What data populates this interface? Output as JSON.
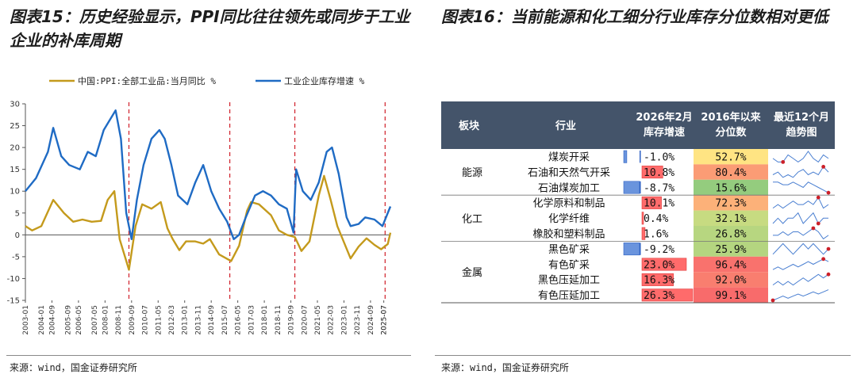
{
  "left": {
    "title": "图表15：历史经验显示，PPI同比往往领先或同步于工业企业的补库周期",
    "source": "来源：wind，国金证券研究所"
  },
  "right": {
    "title": "图表16：当前能源和化工细分行业库存分位数相对更低",
    "source": "来源：wind，国金证券研究所"
  },
  "chart_data": [
    {
      "type": "line",
      "title": "",
      "ylim": [
        -15,
        30
      ],
      "yticks": [
        -15,
        -10,
        -5,
        0,
        5,
        10,
        15,
        20,
        25,
        30
      ],
      "x_range": [
        "2003-01",
        "2025-12"
      ],
      "xticks": [
        "2003-01",
        "2004-09",
        "2006-05",
        "2008-01",
        "2009-09",
        "2011-05",
        "2013-01",
        "2014-09",
        "2016-05",
        "2018-01",
        "2019-09",
        "2021-05",
        "2023-01",
        "2024-09",
        "2025-07"
      ],
      "xticks_upper": [
        "2004-01",
        "2005-09",
        "2007-05",
        "2008-11",
        "2010-07",
        "2012-03",
        "2013-11",
        "2015-07",
        "2017-03",
        "2018-11",
        "2020-07",
        "2022-03",
        "2023-11",
        "2025-07"
      ],
      "vlines": [
        "2009-07",
        "2015-11",
        "2019-12",
        "2025-08"
      ],
      "series": [
        {
          "name": "中国:PPI:全部工业品:当月同比 %",
          "color": "#c49a1c",
          "points": [
            [
              "2003-01",
              2
            ],
            [
              "2003-06",
              1
            ],
            [
              "2004-01",
              2
            ],
            [
              "2004-10",
              8
            ],
            [
              "2005-06",
              5
            ],
            [
              "2006-01",
              3
            ],
            [
              "2006-08",
              3.5
            ],
            [
              "2007-03",
              3
            ],
            [
              "2007-10",
              3.2
            ],
            [
              "2008-03",
              8
            ],
            [
              "2008-08",
              10
            ],
            [
              "2008-12",
              -1
            ],
            [
              "2009-07",
              -8
            ],
            [
              "2009-12",
              2
            ],
            [
              "2010-05",
              7
            ],
            [
              "2010-12",
              6
            ],
            [
              "2011-07",
              7.5
            ],
            [
              "2011-12",
              1.5
            ],
            [
              "2012-04",
              -1
            ],
            [
              "2012-09",
              -3.5
            ],
            [
              "2013-02",
              -1.5
            ],
            [
              "2013-09",
              -1.5
            ],
            [
              "2014-03",
              -2
            ],
            [
              "2014-08",
              -1
            ],
            [
              "2015-03",
              -4.5
            ],
            [
              "2015-12",
              -6
            ],
            [
              "2016-06",
              -2.5
            ],
            [
              "2016-12",
              5.5
            ],
            [
              "2017-03",
              7.5
            ],
            [
              "2017-09",
              7
            ],
            [
              "2018-06",
              4.5
            ],
            [
              "2018-12",
              1
            ],
            [
              "2019-06",
              0
            ],
            [
              "2019-12",
              -0.5
            ],
            [
              "2020-05",
              -3.7
            ],
            [
              "2020-11",
              -1.5
            ],
            [
              "2021-06",
              9
            ],
            [
              "2021-10",
              13.5
            ],
            [
              "2022-03",
              8
            ],
            [
              "2022-08",
              2
            ],
            [
              "2023-06",
              -5.4
            ],
            [
              "2023-12",
              -2.7
            ],
            [
              "2024-06",
              -0.8
            ],
            [
              "2024-12",
              -2.3
            ],
            [
              "2025-05",
              -3.3
            ],
            [
              "2025-10",
              -2.1
            ],
            [
              "2025-12",
              0.5
            ]
          ]
        },
        {
          "name": "工业企业库存增速 %",
          "color": "#1f6bc4",
          "points": [
            [
              "2003-01",
              10
            ],
            [
              "2003-09",
              13
            ],
            [
              "2004-06",
              19
            ],
            [
              "2004-10",
              24.5
            ],
            [
              "2005-04",
              18
            ],
            [
              "2005-10",
              16
            ],
            [
              "2006-06",
              15
            ],
            [
              "2006-12",
              19
            ],
            [
              "2007-06",
              18
            ],
            [
              "2007-12",
              24
            ],
            [
              "2008-04",
              26
            ],
            [
              "2008-09",
              28.5
            ],
            [
              "2009-01",
              22
            ],
            [
              "2009-05",
              5
            ],
            [
              "2009-09",
              -1
            ],
            [
              "2010-01",
              8
            ],
            [
              "2010-06",
              16
            ],
            [
              "2010-12",
              22
            ],
            [
              "2011-06",
              24
            ],
            [
              "2011-10",
              22
            ],
            [
              "2012-03",
              16
            ],
            [
              "2012-08",
              9
            ],
            [
              "2013-03",
              7
            ],
            [
              "2013-09",
              12
            ],
            [
              "2014-03",
              16
            ],
            [
              "2014-09",
              10
            ],
            [
              "2015-03",
              6
            ],
            [
              "2015-09",
              3
            ],
            [
              "2016-02",
              -1
            ],
            [
              "2016-06",
              0
            ],
            [
              "2016-11",
              4
            ],
            [
              "2017-06",
              9
            ],
            [
              "2017-12",
              10
            ],
            [
              "2018-06",
              9
            ],
            [
              "2018-12",
              7
            ],
            [
              "2019-06",
              6
            ],
            [
              "2019-11",
              0.5
            ],
            [
              "2020-01",
              15
            ],
            [
              "2020-06",
              10
            ],
            [
              "2020-12",
              8
            ],
            [
              "2021-06",
              12
            ],
            [
              "2021-12",
              19
            ],
            [
              "2022-04",
              20
            ],
            [
              "2022-09",
              14
            ],
            [
              "2023-03",
              4
            ],
            [
              "2023-06",
              2
            ],
            [
              "2023-12",
              2.5
            ],
            [
              "2024-05",
              4
            ],
            [
              "2024-12",
              3.5
            ],
            [
              "2025-06",
              2
            ],
            [
              "2025-12",
              6.5
            ]
          ]
        }
      ]
    },
    {
      "type": "table",
      "columns": [
        "板块",
        "行业",
        "2026年2月\n库存增速",
        "2016年以来\n分位数",
        "最近12个月\n趋势图"
      ],
      "groups": [
        "能源",
        "化工",
        "金属"
      ],
      "rows": [
        {
          "group": "能源",
          "industry": "煤炭开采",
          "growth": -1.0,
          "growth_text": "-1.0%",
          "pct": 52.7,
          "pct_text": "52.7%",
          "trend": [
            3,
            2,
            2,
            4,
            3,
            2,
            3,
            5,
            3,
            2,
            4,
            3
          ],
          "hl": 2
        },
        {
          "group": "能源",
          "industry": "石油和天然气开采",
          "growth": 10.8,
          "growth_text": "10.8%",
          "pct": 80.4,
          "pct_text": "80.4%",
          "trend": [
            3,
            4,
            2,
            3,
            2,
            4,
            5,
            3,
            4,
            3,
            6,
            4
          ],
          "hl": 10
        },
        {
          "group": "能源",
          "industry": "石油煤炭加工",
          "growth": -8.7,
          "growth_text": "-8.7%",
          "pct": 15.6,
          "pct_text": "15.6%",
          "trend": [
            5,
            5,
            4,
            4,
            5,
            4,
            3,
            5,
            4,
            3,
            2,
            1
          ],
          "hl": 11
        },
        {
          "group": "化工",
          "industry": "化学原料和制品",
          "growth": 10.1,
          "growth_text": "10.1%",
          "pct": 72.3,
          "pct_text": "72.3%",
          "trend": [
            3,
            4,
            3,
            4,
            5,
            4,
            4,
            5,
            4,
            6,
            3,
            4
          ],
          "hl": 9
        },
        {
          "group": "化工",
          "industry": "化学纤维",
          "growth": 0.4,
          "growth_text": "0.4%",
          "pct": 32.1,
          "pct_text": "32.1%",
          "trend": [
            3,
            4,
            3,
            4,
            4,
            5,
            3,
            4,
            5,
            3,
            4,
            4
          ],
          "hl": 9
        },
        {
          "group": "化工",
          "industry": "橡胶和塑料制品",
          "growth": 1.6,
          "growth_text": "1.6%",
          "pct": 26.8,
          "pct_text": "26.8%",
          "trend": [
            4,
            4,
            5,
            4,
            5,
            5,
            4,
            5,
            6,
            5,
            3,
            4
          ],
          "hl": 8
        },
        {
          "group": "金属",
          "industry": "黑色矿采",
          "growth": -9.2,
          "growth_text": "-9.2%",
          "pct": 25.9,
          "pct_text": "25.9%",
          "trend": [
            3,
            4,
            5,
            4,
            3,
            4,
            5,
            4,
            5,
            4,
            3,
            4
          ],
          "hl": 11
        },
        {
          "group": "金属",
          "industry": "有色矿采",
          "growth": 23.0,
          "growth_text": "23.0%",
          "pct": 96.4,
          "pct_text": "96.4%",
          "trend": [
            2,
            3,
            2,
            3,
            4,
            3,
            4,
            5,
            4,
            5,
            6,
            5
          ],
          "hl": 10
        },
        {
          "group": "金属",
          "industry": "黑色压延加工",
          "growth": 16.3,
          "growth_text": "16.3%",
          "pct": 92.0,
          "pct_text": "92.0%",
          "trend": [
            3,
            4,
            3,
            4,
            3,
            4,
            5,
            4,
            5,
            6,
            5,
            6
          ],
          "hl": 11
        },
        {
          "group": "金属",
          "industry": "有色压延加工",
          "growth": 26.3,
          "growth_text": "26.3%",
          "pct": 99.1,
          "pct_text": "99.1%",
          "trend": [
            1,
            2,
            3,
            2,
            3,
            4,
            3,
            4,
            5,
            4,
            5,
            6
          ],
          "hl": 0
        }
      ]
    }
  ]
}
